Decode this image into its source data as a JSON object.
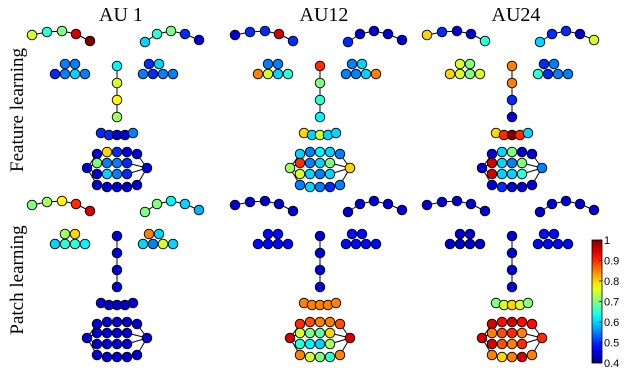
{
  "columns": [
    {
      "label": "AU 1"
    },
    {
      "label": "AU12"
    },
    {
      "label": "AU24"
    }
  ],
  "rows": [
    {
      "label": "Feature learning"
    },
    {
      "label": "Patch learning"
    }
  ],
  "colorbar": {
    "colormap": "jet",
    "min": 0.4,
    "max": 1.0,
    "ticks": [
      "1",
      "0.9",
      "0.8",
      "0.7",
      "0.6",
      "0.5",
      "0.4"
    ]
  },
  "panels": [
    {
      "column": "AU 1",
      "row": "Feature learning",
      "values": {
        "brow_left": [
          0.75,
          0.65,
          0.7,
          0.95,
          1.0
        ],
        "brow_right": [
          0.6,
          0.65,
          0.7,
          0.5,
          0.45
        ],
        "eye_left_top": [
          0.55,
          0.55
        ],
        "eye_left_bottom": [
          0.5,
          0.55,
          0.6,
          0.55
        ],
        "eye_right_top": [
          0.5,
          0.6
        ],
        "eye_right_bottom": [
          0.55,
          0.5,
          0.55,
          0.55
        ],
        "nose": [
          0.62,
          0.75,
          0.78,
          0.72
        ],
        "nostril": [
          0.5,
          0.5,
          0.45,
          0.45,
          0.55
        ],
        "mouth_outer": [
          0.45,
          0.45,
          0.8,
          0.5,
          0.45,
          0.45,
          0.45,
          0.45,
          0.45,
          0.45,
          0.45,
          0.45
        ],
        "mouth_inner": [
          0.7,
          0.55,
          0.55,
          0.5,
          0.45,
          0.6,
          0.55,
          0.5
        ]
      }
    },
    {
      "column": "AU12",
      "row": "Feature learning",
      "values": {
        "brow_left": [
          0.45,
          0.5,
          0.5,
          0.95,
          0.5
        ],
        "brow_right": [
          0.5,
          0.45,
          0.45,
          0.45,
          0.45
        ],
        "eye_left_top": [
          0.55,
          0.55
        ],
        "eye_left_bottom": [
          0.85,
          0.75,
          0.6,
          0.65
        ],
        "eye_right_top": [
          0.55,
          0.6
        ],
        "eye_right_bottom": [
          0.55,
          0.55,
          0.6,
          0.85
        ],
        "nose": [
          0.9,
          0.7,
          0.65,
          0.62
        ],
        "nostril": [
          0.8,
          0.6,
          0.75,
          0.6,
          0.6
        ],
        "mouth_outer": [
          0.72,
          0.6,
          0.55,
          0.62,
          0.6,
          0.55,
          0.8,
          0.55,
          0.5,
          0.55,
          0.6,
          0.55
        ],
        "mouth_inner": [
          0.9,
          0.55,
          0.6,
          0.7,
          0.75,
          0.6,
          0.55,
          0.6
        ]
      }
    },
    {
      "column": "AU24",
      "row": "Feature learning",
      "values": {
        "brow_left": [
          0.8,
          0.5,
          0.45,
          0.45,
          0.65
        ],
        "brow_right": [
          0.6,
          0.5,
          0.5,
          0.45,
          0.75
        ],
        "eye_left_top": [
          0.75,
          0.7
        ],
        "eye_left_bottom": [
          0.8,
          0.75,
          0.7,
          0.75
        ],
        "eye_right_top": [
          0.5,
          0.55
        ],
        "eye_right_bottom": [
          0.65,
          0.5,
          0.55,
          0.55
        ],
        "nose": [
          0.85,
          0.85,
          0.5,
          0.45
        ],
        "nostril": [
          0.8,
          0.9,
          1.0,
          0.9,
          0.6
        ],
        "mouth_outer": [
          0.45,
          0.45,
          0.6,
          0.7,
          0.45,
          0.45,
          0.55,
          0.45,
          0.45,
          0.45,
          0.5,
          0.45
        ],
        "mouth_inner": [
          0.95,
          0.6,
          0.55,
          0.7,
          0.95,
          0.6,
          0.6,
          0.65
        ]
      }
    },
    {
      "column": "AU 1",
      "row": "Patch learning",
      "values": {
        "brow_left": [
          0.7,
          0.72,
          0.78,
          0.9,
          0.95
        ],
        "brow_right": [
          0.7,
          0.7,
          0.62,
          0.6,
          0.58
        ],
        "eye_left_top": [
          0.72,
          0.8
        ],
        "eye_left_bottom": [
          0.6,
          0.65,
          0.65,
          0.62
        ],
        "eye_right_top": [
          0.85,
          0.6
        ],
        "eye_right_bottom": [
          0.6,
          0.55,
          0.75,
          0.6
        ],
        "nose": [
          0.45,
          0.45,
          0.45,
          0.45
        ],
        "nostril": [
          0.45,
          0.45,
          0.45,
          0.45,
          0.45
        ],
        "mouth_outer": [
          0.45,
          0.45,
          0.45,
          0.45,
          0.45,
          0.45,
          0.45,
          0.45,
          0.45,
          0.45,
          0.45,
          0.45
        ],
        "mouth_inner": [
          0.45,
          0.45,
          0.45,
          0.45,
          0.45,
          0.45,
          0.45,
          0.45
        ]
      }
    },
    {
      "column": "AU12",
      "row": "Patch learning",
      "values": {
        "brow_left": [
          0.45,
          0.45,
          0.45,
          0.45,
          0.45
        ],
        "brow_right": [
          0.45,
          0.45,
          0.45,
          0.45,
          0.45
        ],
        "eye_left_top": [
          0.48,
          0.48
        ],
        "eye_left_bottom": [
          0.48,
          0.48,
          0.48,
          0.48
        ],
        "eye_right_top": [
          0.48,
          0.48
        ],
        "eye_right_bottom": [
          0.48,
          0.48,
          0.48,
          0.48
        ],
        "nose": [
          0.45,
          0.45,
          0.45,
          0.45
        ],
        "nostril": [
          0.85,
          0.85,
          0.85,
          0.85,
          0.85
        ],
        "mouth_outer": [
          0.95,
          0.9,
          0.88,
          0.85,
          0.85,
          0.88,
          0.95,
          0.85,
          0.65,
          0.7,
          0.75,
          0.85
        ],
        "mouth_inner": [
          0.75,
          0.7,
          0.68,
          0.8,
          0.65,
          0.62,
          0.6,
          0.72
        ]
      }
    },
    {
      "column": "AU24",
      "row": "Patch learning",
      "values": {
        "brow_left": [
          0.45,
          0.45,
          0.45,
          0.45,
          0.45
        ],
        "brow_right": [
          0.45,
          0.45,
          0.45,
          0.45,
          0.45
        ],
        "eye_left_top": [
          0.45,
          0.45
        ],
        "eye_left_bottom": [
          0.45,
          0.45,
          0.45,
          0.45
        ],
        "eye_right_top": [
          0.48,
          0.48
        ],
        "eye_right_bottom": [
          0.48,
          0.48,
          0.48,
          0.48
        ],
        "nose": [
          0.45,
          0.45,
          0.45,
          0.45
        ],
        "nostril": [
          0.7,
          0.75,
          0.8,
          0.75,
          0.7
        ],
        "mouth_outer": [
          0.95,
          0.95,
          0.92,
          0.95,
          0.92,
          0.92,
          0.9,
          0.85,
          0.95,
          0.85,
          0.8,
          0.85
        ],
        "mouth_inner": [
          0.85,
          0.88,
          0.9,
          0.85,
          0.95,
          0.88,
          0.85,
          0.9
        ]
      }
    }
  ]
}
